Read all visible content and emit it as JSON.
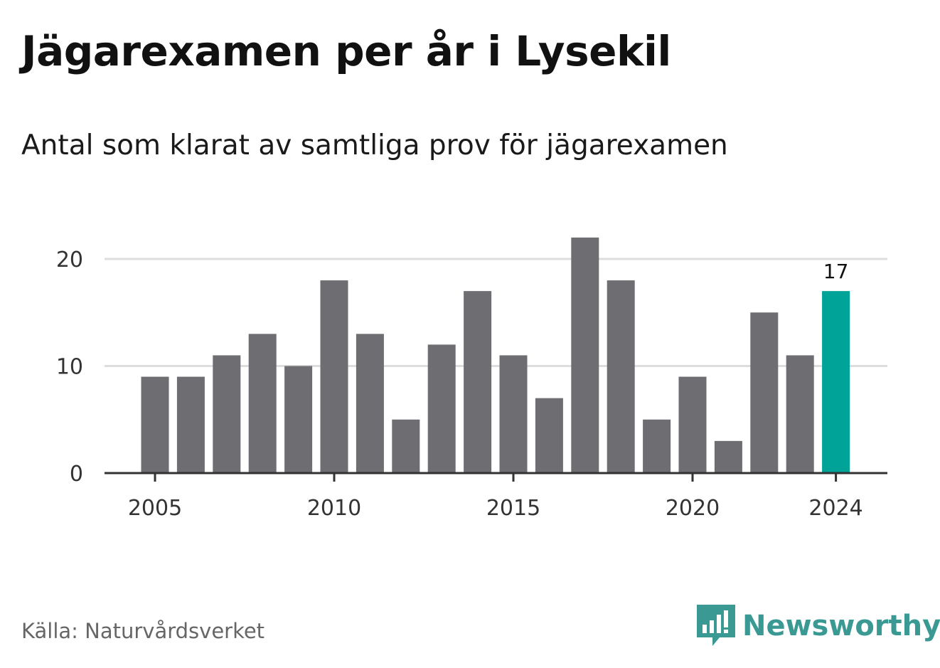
{
  "title": "Jägarexamen per år i Lysekil",
  "subtitle": "Antal som klarat av samtliga prov för jägarexamen",
  "source": "Källa: Naturvårdsverket",
  "brand": {
    "name": "Newsworthy",
    "icon": "newsworthy-logo-icon"
  },
  "colors": {
    "bar": "#6e6d72",
    "highlight": "#00a398",
    "grid": "#dddddd",
    "axis": "#333333",
    "brand": "#3a9a93"
  },
  "chart_data": {
    "type": "bar",
    "categories": [
      2005,
      2006,
      2007,
      2008,
      2009,
      2010,
      2011,
      2012,
      2013,
      2014,
      2015,
      2016,
      2017,
      2018,
      2019,
      2020,
      2021,
      2022,
      2023,
      2024
    ],
    "values": [
      9,
      9,
      11,
      13,
      10,
      18,
      13,
      5,
      12,
      17,
      11,
      7,
      22,
      18,
      5,
      9,
      3,
      15,
      11,
      17
    ],
    "highlight": {
      "category": 2024,
      "label": "17"
    },
    "x_ticks": [
      "2005",
      "2010",
      "2015",
      "2020",
      "2024"
    ],
    "y_ticks": [
      0,
      10,
      20
    ],
    "ylim": [
      0,
      22
    ],
    "grid": true,
    "xlabel": "",
    "ylabel": ""
  }
}
